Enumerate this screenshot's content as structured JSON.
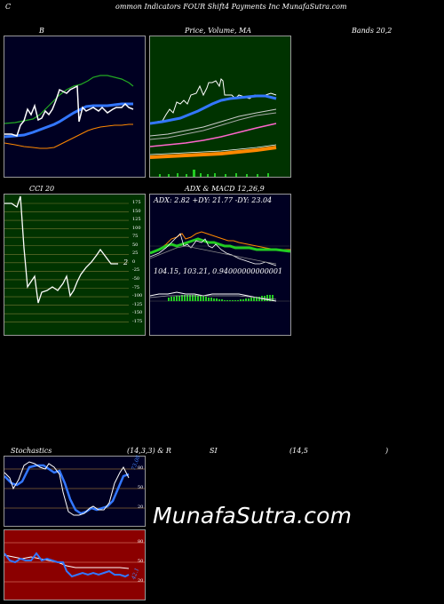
{
  "header": {
    "title": "ommon  Indicators FOUR Shift4  Payments Inc MunafaSutra.com",
    "c_letter": "C"
  },
  "labels": {
    "b": "B",
    "price_ma": "Price,  Volume, MA",
    "bands": "Bands 20,2",
    "cci": "CCI 20",
    "adx_macd": "ADX  & MACD 12,26,9",
    "adx_values": "ADX: 2.82  +DY: 21.77 -DY: 23.04",
    "macd_values": "104.15,   103.21,  0.94000000000001",
    "stochastics": "Stochastics",
    "stoch_params": "(14,3,3) & R",
    "si": "SI",
    "rsi_params": "(14,5",
    "rsi_close": ")",
    "watermark": "MunafaSutra.com"
  },
  "cci_axis": [
    "175",
    "150",
    "125",
    "100",
    "75",
    "50",
    "25",
    "0",
    "-25",
    "-50",
    "-75",
    "-100",
    "-125",
    "-150",
    "-175"
  ],
  "cci_current": "2",
  "stoch_axis": [
    "80",
    "50",
    "20"
  ],
  "stoch_current": "73.08",
  "rsi_axis": [
    "80",
    "50",
    "20"
  ],
  "rsi_current": "42.1",
  "colors": {
    "bands_bg": "#000022",
    "price_bg": "#003300",
    "cci_bg": "#003300",
    "adx_bg": "#000022",
    "rsi_bg": "#8b0000",
    "accent_blue": "#3377ff",
    "accent_green": "#22cc22",
    "accent_orange": "#ff8800"
  }
}
